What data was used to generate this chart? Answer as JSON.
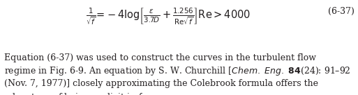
{
  "background_color": "#ffffff",
  "text_color": "#231f20",
  "eq_number": "(6-37)",
  "font_size_eq": 10.5,
  "font_size_body": 9.0,
  "figwidth": 5.13,
  "figheight": 1.37,
  "dpi": 100
}
